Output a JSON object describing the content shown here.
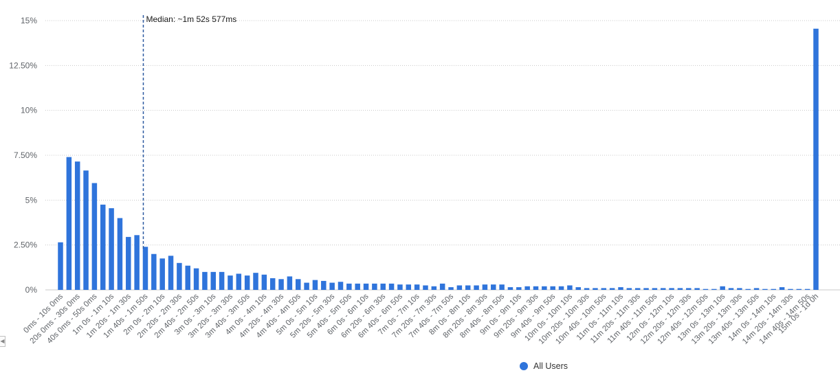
{
  "chart_data": {
    "type": "bar",
    "series": [
      {
        "name": "All Users",
        "color": "#2f74db",
        "values": [
          2.65,
          7.4,
          7.15,
          6.65,
          5.95,
          4.75,
          4.55,
          4.0,
          2.95,
          3.05,
          2.4,
          2.0,
          1.75,
          1.9,
          1.5,
          1.35,
          1.2,
          1.0,
          1.0,
          1.0,
          0.8,
          0.9,
          0.8,
          0.95,
          0.85,
          0.65,
          0.6,
          0.75,
          0.6,
          0.4,
          0.55,
          0.5,
          0.4,
          0.45,
          0.35,
          0.35,
          0.35,
          0.35,
          0.35,
          0.35,
          0.3,
          0.3,
          0.3,
          0.25,
          0.2,
          0.35,
          0.15,
          0.25,
          0.25,
          0.25,
          0.3,
          0.3,
          0.3,
          0.15,
          0.15,
          0.2,
          0.2,
          0.2,
          0.2,
          0.2,
          0.25,
          0.15,
          0.1,
          0.1,
          0.1,
          0.1,
          0.15,
          0.1,
          0.1,
          0.1,
          0.1,
          0.1,
          0.1,
          0.1,
          0.1,
          0.1,
          0.05,
          0.05,
          0.2,
          0.1,
          0.1,
          0.05,
          0.1,
          0.05,
          0.05,
          0.15,
          0.05,
          0.05,
          0.05,
          14.55
        ]
      }
    ],
    "x_tick_labels": [
      "0ms - 10s 0ms",
      "20s 0ms - 30s 0ms",
      "40s 0ms - 50s 0ms",
      "1m 0s - 1m 10s",
      "1m 20s - 1m 30s",
      "1m 40s - 1m 50s",
      "2m 0s - 2m 10s",
      "2m 20s - 2m 30s",
      "2m 40s - 2m 50s",
      "3m 0s - 3m 10s",
      "3m 20s - 3m 30s",
      "3m 40s - 3m 50s",
      "4m 0s - 4m 10s",
      "4m 20s - 4m 30s",
      "4m 40s - 4m 50s",
      "5m 0s - 5m 10s",
      "5m 20s - 5m 30s",
      "5m 40s - 5m 50s",
      "6m 0s - 6m 10s",
      "6m 20s - 6m 30s",
      "6m 40s - 6m 50s",
      "7m 0s - 7m 10s",
      "7m 20s - 7m 30s",
      "7m 40s - 7m 50s",
      "8m 0s - 8m 10s",
      "8m 20s - 8m 30s",
      "8m 40s - 8m 50s",
      "9m 0s - 9m 10s",
      "9m 20s - 9m 30s",
      "9m 40s - 9m 50s",
      "10m 0s - 10m 10s",
      "10m 20s - 10m 30s",
      "10m 40s - 10m 50s",
      "11m 0s - 11m 10s",
      "11m 20s - 11m 30s",
      "11m 40s - 11m 50s",
      "12m 0s - 12m 10s",
      "12m 20s - 12m 30s",
      "12m 40s - 12m 50s",
      "13m 0s - 13m 10s",
      "13m 20s - 13m 30s",
      "13m 40s - 13m 50s",
      "14m 0s - 14m 10s",
      "14m 20s - 14m 30s",
      "14m 40s - 14m 50s",
      "15m 0s - 1d 0h"
    ],
    "y_ticks": [
      0,
      2.5,
      5,
      7.5,
      10,
      12.5,
      15
    ],
    "y_tick_labels": [
      "0%",
      "2.50%",
      "5%",
      "7.50%",
      "10%",
      "12.50%",
      "15%"
    ],
    "ylim": [
      0,
      15
    ],
    "grid": true,
    "legend_position": "bottom-center",
    "median": {
      "bin_index": 10,
      "label": "Median: ~1m 52s 577ms"
    }
  },
  "legend": {
    "label": "All Users"
  }
}
